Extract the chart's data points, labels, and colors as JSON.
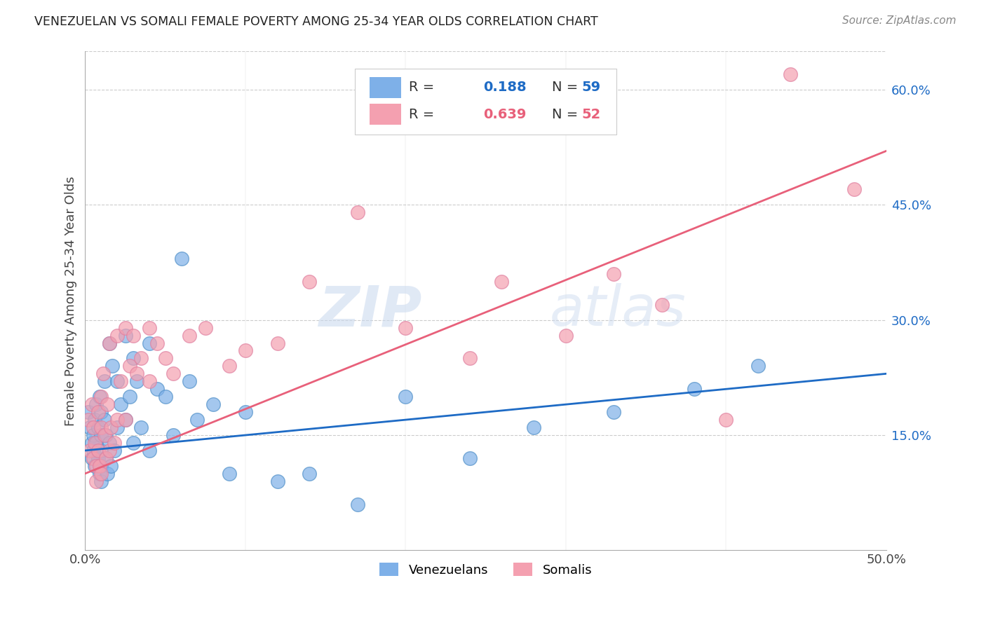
{
  "title": "VENEZUELAN VS SOMALI FEMALE POVERTY AMONG 25-34 YEAR OLDS CORRELATION CHART",
  "source": "Source: ZipAtlas.com",
  "ylabel": "Female Poverty Among 25-34 Year Olds",
  "xlim": [
    0.0,
    0.5
  ],
  "ylim": [
    0.0,
    0.65
  ],
  "xtick_positions": [
    0.0,
    0.1,
    0.2,
    0.3,
    0.4,
    0.5
  ],
  "xticklabels": [
    "0.0%",
    "",
    "",
    "",
    "",
    "50.0%"
  ],
  "yticks_right": [
    0.15,
    0.3,
    0.45,
    0.6
  ],
  "ytick_right_labels": [
    "15.0%",
    "30.0%",
    "45.0%",
    "60.0%"
  ],
  "watermark": "ZIPatlas",
  "blue_color": "#7EB0E8",
  "pink_color": "#F4A0B0",
  "blue_line_color": "#1E6BC5",
  "pink_line_color": "#E8607A",
  "R_venezuelan": 0.188,
  "N_venezuelan": 59,
  "R_somali": 0.639,
  "N_somali": 52,
  "venezuelan_x": [
    0.002,
    0.003,
    0.004,
    0.004,
    0.005,
    0.005,
    0.006,
    0.006,
    0.007,
    0.007,
    0.008,
    0.008,
    0.009,
    0.009,
    0.01,
    0.01,
    0.01,
    0.01,
    0.01,
    0.012,
    0.012,
    0.013,
    0.013,
    0.014,
    0.015,
    0.015,
    0.016,
    0.017,
    0.018,
    0.02,
    0.02,
    0.022,
    0.025,
    0.025,
    0.028,
    0.03,
    0.03,
    0.032,
    0.035,
    0.04,
    0.04,
    0.045,
    0.05,
    0.055,
    0.06,
    0.065,
    0.07,
    0.08,
    0.09,
    0.1,
    0.12,
    0.14,
    0.17,
    0.2,
    0.24,
    0.28,
    0.33,
    0.38,
    0.42
  ],
  "venezuelan_y": [
    0.18,
    0.16,
    0.14,
    0.12,
    0.15,
    0.13,
    0.17,
    0.11,
    0.19,
    0.14,
    0.16,
    0.12,
    0.2,
    0.1,
    0.18,
    0.15,
    0.13,
    0.11,
    0.09,
    0.22,
    0.17,
    0.15,
    0.12,
    0.1,
    0.27,
    0.14,
    0.11,
    0.24,
    0.13,
    0.22,
    0.16,
    0.19,
    0.28,
    0.17,
    0.2,
    0.25,
    0.14,
    0.22,
    0.16,
    0.27,
    0.13,
    0.21,
    0.2,
    0.15,
    0.38,
    0.22,
    0.17,
    0.19,
    0.1,
    0.18,
    0.09,
    0.1,
    0.06,
    0.2,
    0.12,
    0.16,
    0.18,
    0.21,
    0.24
  ],
  "somali_x": [
    0.002,
    0.003,
    0.004,
    0.005,
    0.005,
    0.006,
    0.007,
    0.007,
    0.008,
    0.008,
    0.009,
    0.01,
    0.01,
    0.01,
    0.011,
    0.012,
    0.013,
    0.014,
    0.015,
    0.015,
    0.016,
    0.018,
    0.02,
    0.02,
    0.022,
    0.025,
    0.025,
    0.028,
    0.03,
    0.032,
    0.035,
    0.04,
    0.04,
    0.045,
    0.05,
    0.055,
    0.065,
    0.075,
    0.09,
    0.1,
    0.12,
    0.14,
    0.17,
    0.2,
    0.24,
    0.26,
    0.3,
    0.33,
    0.36,
    0.4,
    0.44,
    0.48
  ],
  "somali_y": [
    0.17,
    0.13,
    0.19,
    0.16,
    0.12,
    0.14,
    0.11,
    0.09,
    0.18,
    0.13,
    0.11,
    0.2,
    0.16,
    0.1,
    0.23,
    0.15,
    0.12,
    0.19,
    0.27,
    0.13,
    0.16,
    0.14,
    0.28,
    0.17,
    0.22,
    0.29,
    0.17,
    0.24,
    0.28,
    0.23,
    0.25,
    0.29,
    0.22,
    0.27,
    0.25,
    0.23,
    0.28,
    0.29,
    0.24,
    0.26,
    0.27,
    0.35,
    0.44,
    0.29,
    0.25,
    0.35,
    0.28,
    0.36,
    0.32,
    0.17,
    0.62,
    0.47
  ]
}
